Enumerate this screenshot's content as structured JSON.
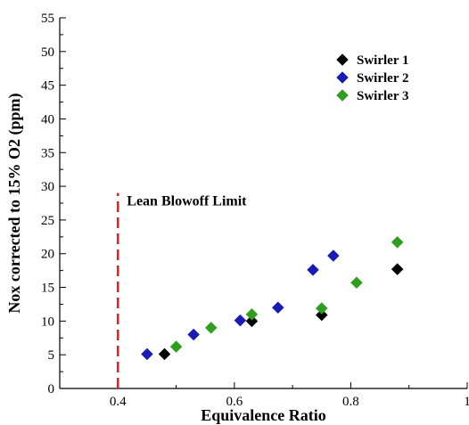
{
  "chart_data": {
    "type": "scatter",
    "xlabel": "Equivalence Ratio",
    "ylabel": "Nox corrected to 15% O2 (ppm)",
    "xlim": [
      0.3,
      1.0
    ],
    "ylim": [
      0,
      55
    ],
    "xticks": [
      0.4,
      0.6,
      0.8,
      1
    ],
    "xtick_labels": [
      "0.4",
      "0.6",
      "0.8",
      "1"
    ],
    "yticks": [
      0,
      5,
      10,
      15,
      20,
      25,
      30,
      35,
      40,
      45,
      50,
      55
    ],
    "ytick_labels": [
      "0",
      "5",
      "10",
      "15",
      "20",
      "25",
      "30",
      "35",
      "40",
      "45",
      "50",
      "55"
    ],
    "grid": false,
    "legend_position": "top-right",
    "marker": "diamond",
    "series": [
      {
        "name": "Swirler 1",
        "color": "#000000",
        "x": [
          0.48,
          0.63,
          0.75,
          0.88
        ],
        "y": [
          5.1,
          10.0,
          10.9,
          17.7
        ]
      },
      {
        "name": "Swirler 2",
        "color": "#1a1ab4",
        "x": [
          0.45,
          0.53,
          0.61,
          0.675,
          0.735,
          0.77
        ],
        "y": [
          5.1,
          8.0,
          10.1,
          12.0,
          17.6,
          19.7
        ]
      },
      {
        "name": "Swirler 3",
        "color": "#2e9e1e",
        "x": [
          0.5,
          0.56,
          0.63,
          0.75,
          0.81,
          0.88
        ],
        "y": [
          6.2,
          9.0,
          11.0,
          11.9,
          15.7,
          21.7
        ]
      }
    ],
    "annotations": [
      {
        "type": "vertical-dashed-line",
        "x": 0.4,
        "y_range": [
          0,
          29
        ],
        "color": "#e02020",
        "label": "Lean Blowoff Limit"
      }
    ]
  }
}
